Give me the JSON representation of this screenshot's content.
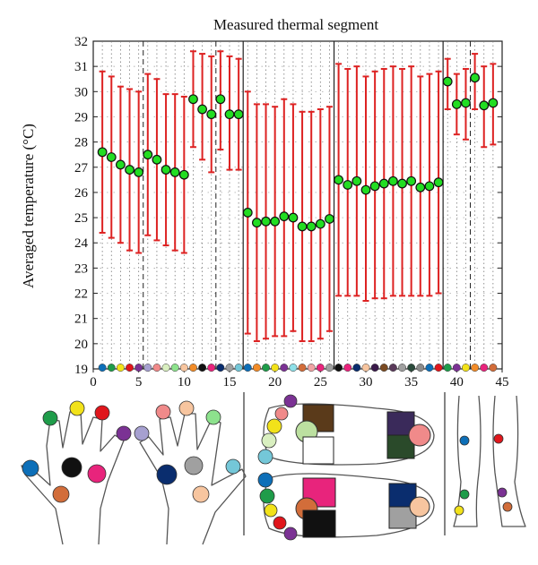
{
  "chart_data": {
    "type": "scatter",
    "title": "Measured thermal segment",
    "xlabel": "",
    "ylabel": "Averaged temperature (°C)",
    "xlim": [
      0,
      45
    ],
    "ylim": [
      19,
      32
    ],
    "x_ticks": [
      "0",
      "5",
      "10",
      "15",
      "20",
      "25",
      "30",
      "35",
      "40",
      "45"
    ],
    "y_ticks": [
      "19",
      "20",
      "21",
      "22",
      "23",
      "24",
      "25",
      "26",
      "27",
      "28",
      "29",
      "30",
      "31",
      "32"
    ],
    "grid": "dotted vertical and horizontal",
    "series": [
      {
        "marker_color": "#22dd22",
        "errorbar_color": "#dd2222",
        "x": [
          1,
          2,
          3,
          4,
          5,
          6,
          7,
          8,
          9,
          10,
          11,
          12,
          13,
          14,
          15,
          16,
          17,
          18,
          19,
          20,
          21,
          22,
          23,
          24,
          25,
          26,
          27,
          28,
          29,
          30,
          31,
          32,
          33,
          34,
          35,
          36,
          37,
          38,
          39,
          40,
          41,
          42,
          43,
          44
        ],
        "y": [
          27.6,
          27.4,
          27.1,
          26.9,
          26.8,
          27.5,
          27.3,
          26.9,
          26.8,
          26.7,
          29.7,
          29.3,
          29.1,
          29.7,
          29.1,
          29.1,
          25.2,
          24.8,
          24.85,
          24.85,
          25.05,
          25.0,
          24.65,
          24.65,
          24.75,
          24.95,
          26.5,
          26.3,
          26.45,
          26.1,
          26.25,
          26.35,
          26.45,
          26.35,
          26.45,
          26.2,
          26.25,
          26.4,
          30.4,
          29.5,
          29.55,
          30.55,
          29.45,
          29.55
        ],
        "err_low": [
          24.4,
          24.2,
          24.0,
          23.7,
          23.6,
          24.3,
          24.1,
          23.9,
          23.7,
          23.6,
          27.8,
          27.3,
          26.8,
          27.7,
          26.9,
          26.9,
          20.4,
          20.1,
          20.2,
          20.3,
          20.3,
          20.5,
          20.1,
          20.1,
          20.2,
          20.5,
          21.9,
          21.9,
          21.9,
          21.7,
          21.8,
          21.8,
          21.9,
          21.9,
          21.9,
          21.9,
          21.9,
          22.0,
          29.3,
          28.3,
          28.1,
          29.3,
          27.8,
          27.9
        ],
        "err_high": [
          30.8,
          30.6,
          30.2,
          30.1,
          30.0,
          30.7,
          30.5,
          29.9,
          29.9,
          29.8,
          31.6,
          31.5,
          31.4,
          31.6,
          31.4,
          31.3,
          30.0,
          29.5,
          29.5,
          29.4,
          29.7,
          29.5,
          29.2,
          29.2,
          29.3,
          29.4,
          31.1,
          30.9,
          31.0,
          30.6,
          30.8,
          30.9,
          31.0,
          30.9,
          31.0,
          30.6,
          30.7,
          30.8,
          31.3,
          30.7,
          30.9,
          31.5,
          31.0,
          31.1
        ]
      }
    ],
    "segment_boundaries_solid": [
      16.5,
      26.5,
      38.5
    ],
    "segment_boundaries_dashed": [
      5.5,
      13.5,
      41.5
    ],
    "color_strip": [
      "#0d6fb8",
      "#1f9c4a",
      "#f2e21a",
      "#e0161c",
      "#7b3294",
      "#a6a0d0",
      "#f08a8a",
      "#d9efc0",
      "#8de28d",
      "#f7c59f",
      "#f28c28",
      "#111111",
      "#e8247c",
      "#0a2d6e",
      "#a0a0a0",
      "#74c7d8",
      "#0d6fb8",
      "#f28c28",
      "#1f9c4a",
      "#f2e21a",
      "#7b3294",
      "#8ee0e8",
      "#d26d3a",
      "#f0a4a4",
      "#e8247c",
      "#a0a0a0",
      "#111111",
      "#e8247c",
      "#0a2d6e",
      "#f7c59f",
      "#3a1a4a",
      "#7a4a22",
      "#5a3a5a",
      "#a0a0a0",
      "#2a4a3a",
      "#8a8a8a",
      "#0d6fb8",
      "#e0161c",
      "#1f9c4a",
      "#7b3294",
      "#f2e21a",
      "#f28c28",
      "#e8247c",
      "#d26d3a"
    ]
  },
  "illustration": {
    "hands": {
      "left_dots": [
        "#1f9c4a",
        "#f2e21a",
        "#e0161c",
        "#7b3294",
        "#0d6fb8",
        "#111111",
        "#e8247c",
        "#d26d3a"
      ],
      "right_dots": [
        "#a6a0d0",
        "#f08a8a",
        "#f7c59f",
        "#8de28d",
        "#0a2d6e",
        "#a0a0a0",
        "#74c7d8",
        "#f7c59f"
      ]
    },
    "feet": {
      "top_foot": [
        "#7b3294",
        "#f08a8a",
        "#f2e21a",
        "#d9efc0",
        "#8de28d",
        "#74c7d8",
        "#5a3a1a",
        "#bce0a0",
        "#ffffff",
        "#3a2a5a",
        "#2a4a2a",
        "#f08a8a"
      ],
      "bottom_foot": [
        "#0d6fb8",
        "#1f9c4a",
        "#f2e21a",
        "#e0161c",
        "#7b3294",
        "#e8247c",
        "#d26d3a",
        "#111111",
        "#0a2d6e",
        "#a0a0a0",
        "#f7c59f"
      ]
    },
    "legs": [
      "#0d6fb8",
      "#e0161c",
      "#1f9c4a",
      "#7b3294",
      "#f2e21a",
      "#d26d3a"
    ]
  }
}
